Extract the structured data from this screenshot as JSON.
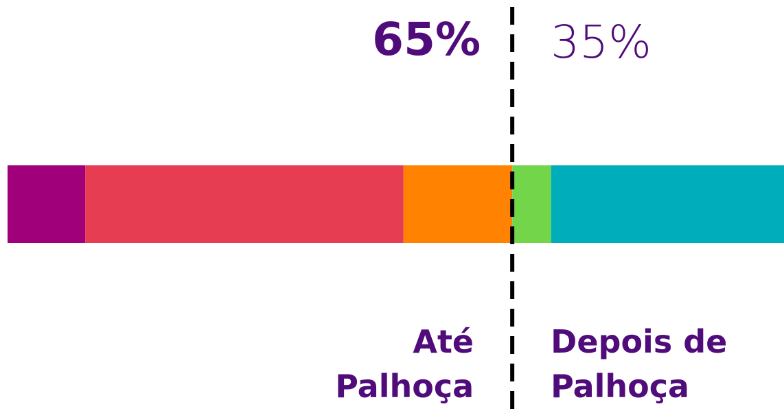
{
  "chart_data": {
    "type": "stacked_bar",
    "segments": [
      {
        "value": 10,
        "color": "#a0007a"
      },
      {
        "value": 41,
        "color": "#e63d52"
      },
      {
        "value": 14,
        "color": "#ff8300"
      },
      {
        "value": 5,
        "color": "#72d54a"
      },
      {
        "value": 30,
        "color": "#00aebb"
      }
    ],
    "xlim": [
      0,
      100
    ],
    "groups": [
      {
        "value": 65,
        "value_label": "65%",
        "label": [
          "Até",
          "Palhoça"
        ]
      },
      {
        "value": 35,
        "value_label": "35%",
        "label": [
          "Depois de",
          "Palhoça"
        ]
      }
    ],
    "text_color": "#4f0c7a"
  }
}
